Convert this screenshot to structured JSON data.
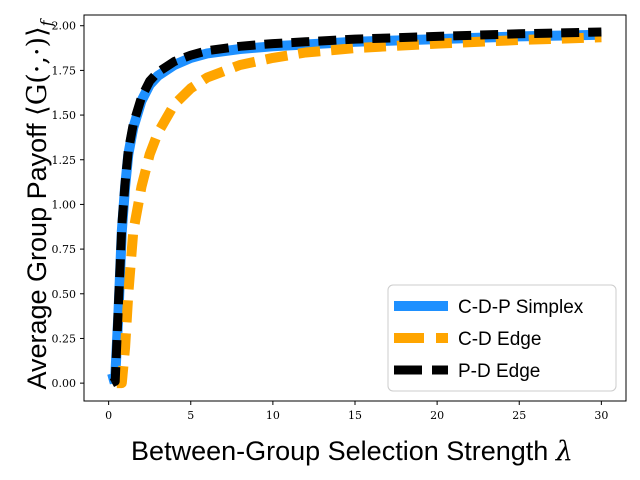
{
  "chart_data": {
    "type": "line",
    "xlabel": "Between-Group Selection Strength",
    "xlabel_symbol": "λ",
    "ylabel": "Average Group Payoff",
    "ylabel_symbol": "⟨G(·,·)⟩",
    "ylabel_subscript": "f",
    "xlim": [
      -1.5,
      31.5
    ],
    "ylim": [
      -0.1,
      2.06
    ],
    "xticks": [
      0,
      5,
      10,
      15,
      20,
      25,
      30
    ],
    "yticks": [
      0.0,
      0.25,
      0.5,
      0.75,
      1.0,
      1.25,
      1.5,
      1.75,
      2.0
    ],
    "ytick_labels": [
      "0.00",
      "0.25",
      "0.50",
      "0.75",
      "1.00",
      "1.25",
      "1.50",
      "1.75",
      "2.00"
    ],
    "grid": false,
    "legend_position": "bottom-right",
    "series": [
      {
        "name": "C-D-P Simplex",
        "color": "#1E90FF",
        "style": "solid",
        "x": [
          0,
          0.4,
          0.6,
          0.8,
          1.0,
          1.2,
          1.5,
          2,
          2.5,
          3,
          4,
          5,
          6,
          8,
          10,
          12,
          15,
          20,
          25,
          30
        ],
        "y": [
          0.02,
          0.03,
          0.4,
          0.85,
          1.1,
          1.28,
          1.43,
          1.58,
          1.67,
          1.72,
          1.78,
          1.82,
          1.845,
          1.87,
          1.885,
          1.895,
          1.91,
          1.925,
          1.94,
          1.95
        ]
      },
      {
        "name": "C-D Edge",
        "color": "#FFA500",
        "style": "dashed",
        "x": [
          0.5,
          0.8,
          1.0,
          1.2,
          1.5,
          2,
          2.5,
          3,
          4,
          5,
          6,
          8,
          10,
          12,
          15,
          20,
          25,
          30
        ],
        "y": [
          0.0,
          0.0,
          0.2,
          0.5,
          0.85,
          1.1,
          1.28,
          1.4,
          1.56,
          1.65,
          1.71,
          1.78,
          1.82,
          1.85,
          1.875,
          1.9,
          1.92,
          1.935
        ]
      },
      {
        "name": "P-D Edge",
        "color": "#000000",
        "style": "dashed",
        "x": [
          0.2,
          0.4,
          0.6,
          0.8,
          1.0,
          1.2,
          1.5,
          2,
          2.5,
          3,
          4,
          5,
          6,
          8,
          10,
          12,
          15,
          20,
          25,
          30
        ],
        "y": [
          0.0,
          0.01,
          0.45,
          0.88,
          1.12,
          1.3,
          1.45,
          1.6,
          1.69,
          1.74,
          1.8,
          1.835,
          1.86,
          1.885,
          1.9,
          1.91,
          1.925,
          1.94,
          1.955,
          1.965
        ]
      }
    ]
  }
}
